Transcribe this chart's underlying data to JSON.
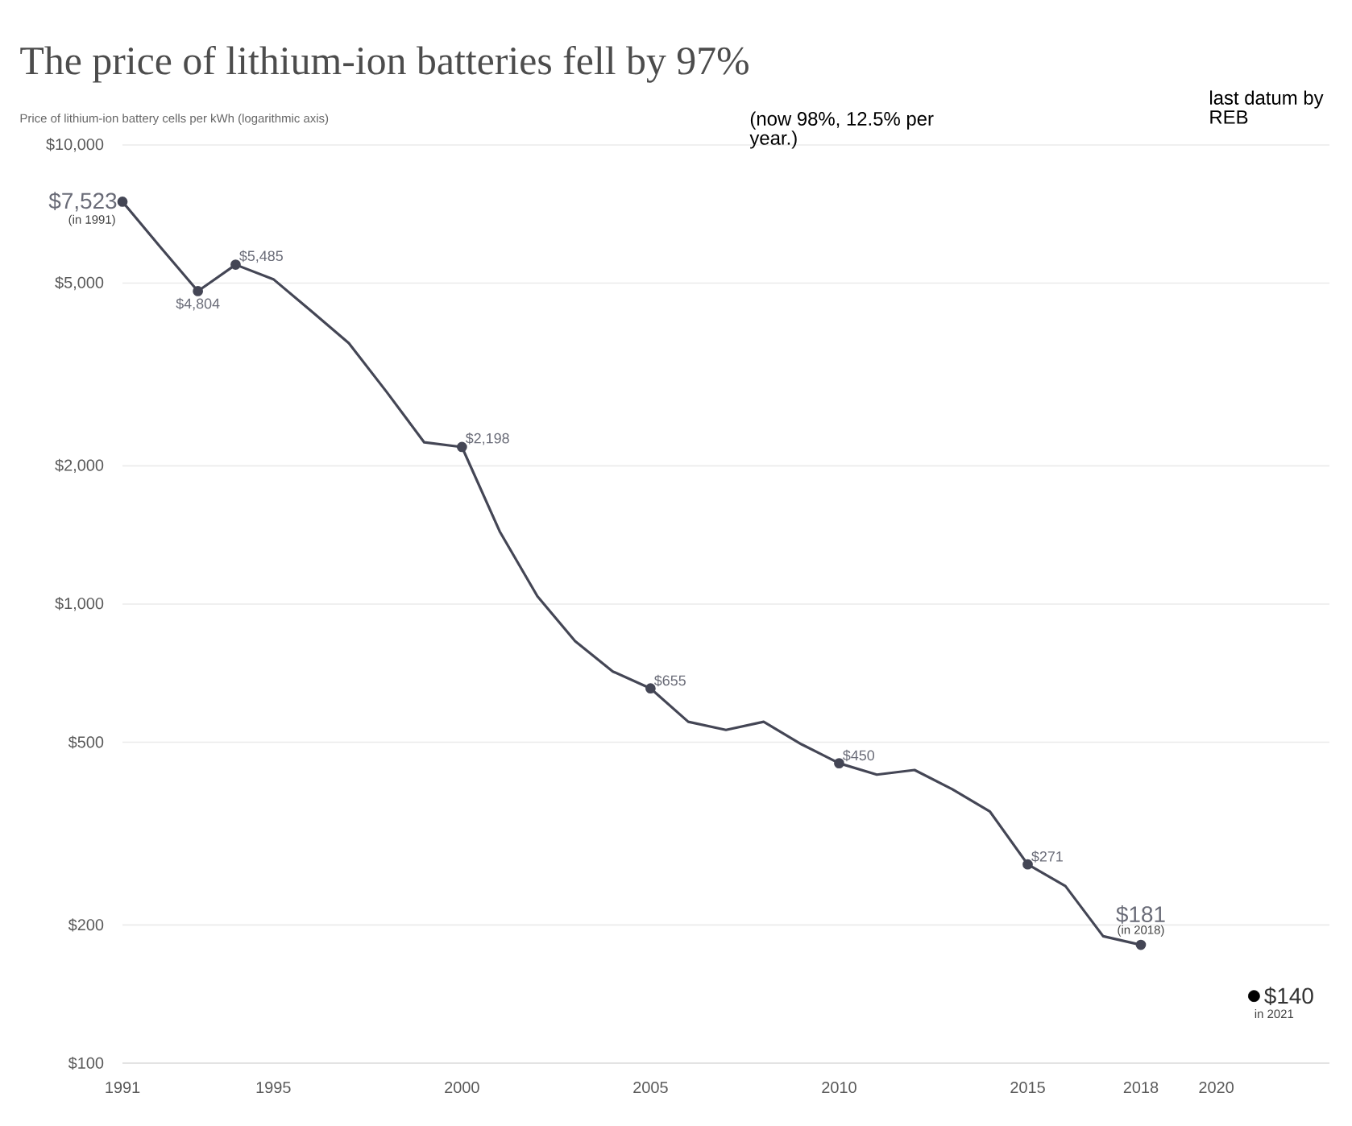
{
  "chart_data": {
    "type": "line",
    "title": "The price of lithium-ion batteries fell by 97%",
    "subtitle": "Price of lithium-ion battery cells per kWh (logarithmic axis)",
    "x": [
      1991,
      1992,
      1993,
      1994,
      1995,
      1996,
      1997,
      1998,
      1999,
      2000,
      2001,
      2002,
      2003,
      2004,
      2005,
      2006,
      2007,
      2008,
      2009,
      2010,
      2011,
      2012,
      2013,
      2014,
      2015,
      2016,
      2017,
      2018
    ],
    "series": [
      {
        "color": "#444655",
        "values": [
          7523,
          6000,
          4804,
          5485,
          5100,
          4350,
          3700,
          2900,
          2250,
          2198,
          1440,
          1040,
          830,
          713,
          655,
          554,
          532,
          554,
          495,
          450,
          425,
          435,
          395,
          353,
          271,
          243,
          189,
          181
        ],
        "value_labels": [
          "$7,523",
          null,
          "$4,804",
          "$5,485",
          null,
          null,
          null,
          null,
          null,
          "$2,198",
          null,
          null,
          null,
          null,
          "$655",
          null,
          null,
          null,
          null,
          "$450",
          null,
          null,
          null,
          null,
          "$271",
          null,
          null,
          "$181"
        ]
      },
      {
        "type": "scatter",
        "color": "#000000",
        "x": [
          2021
        ],
        "values": [
          140
        ],
        "value_labels": [
          "$140"
        ]
      }
    ],
    "log": true,
    "xlim": [
      1991,
      2023
    ],
    "ylim": [
      100,
      10000
    ],
    "xticks": [
      1991,
      1995,
      2000,
      2005,
      2010,
      2015,
      2018,
      2020
    ],
    "yticks": [
      {
        "value": 100,
        "label": "$100"
      },
      {
        "value": 200,
        "label": "$200"
      },
      {
        "value": 500,
        "label": "$500"
      },
      {
        "value": 1000,
        "label": "$1,000"
      },
      {
        "value": 2000,
        "label": "$2,000"
      },
      {
        "value": 5000,
        "label": "$5,000"
      },
      {
        "value": 10000,
        "label": "$10,000"
      }
    ],
    "grid": "y",
    "annotations": [
      {
        "text": "(in 1991)",
        "x": 1991,
        "y": 7523
      },
      {
        "text": "(in 2018)",
        "x": 2018,
        "y": 181
      },
      {
        "text": "in 2021",
        "x": 2021,
        "y": 140
      },
      "(now 98%, 12.5% per year.)",
      "last datum by REB"
    ]
  }
}
